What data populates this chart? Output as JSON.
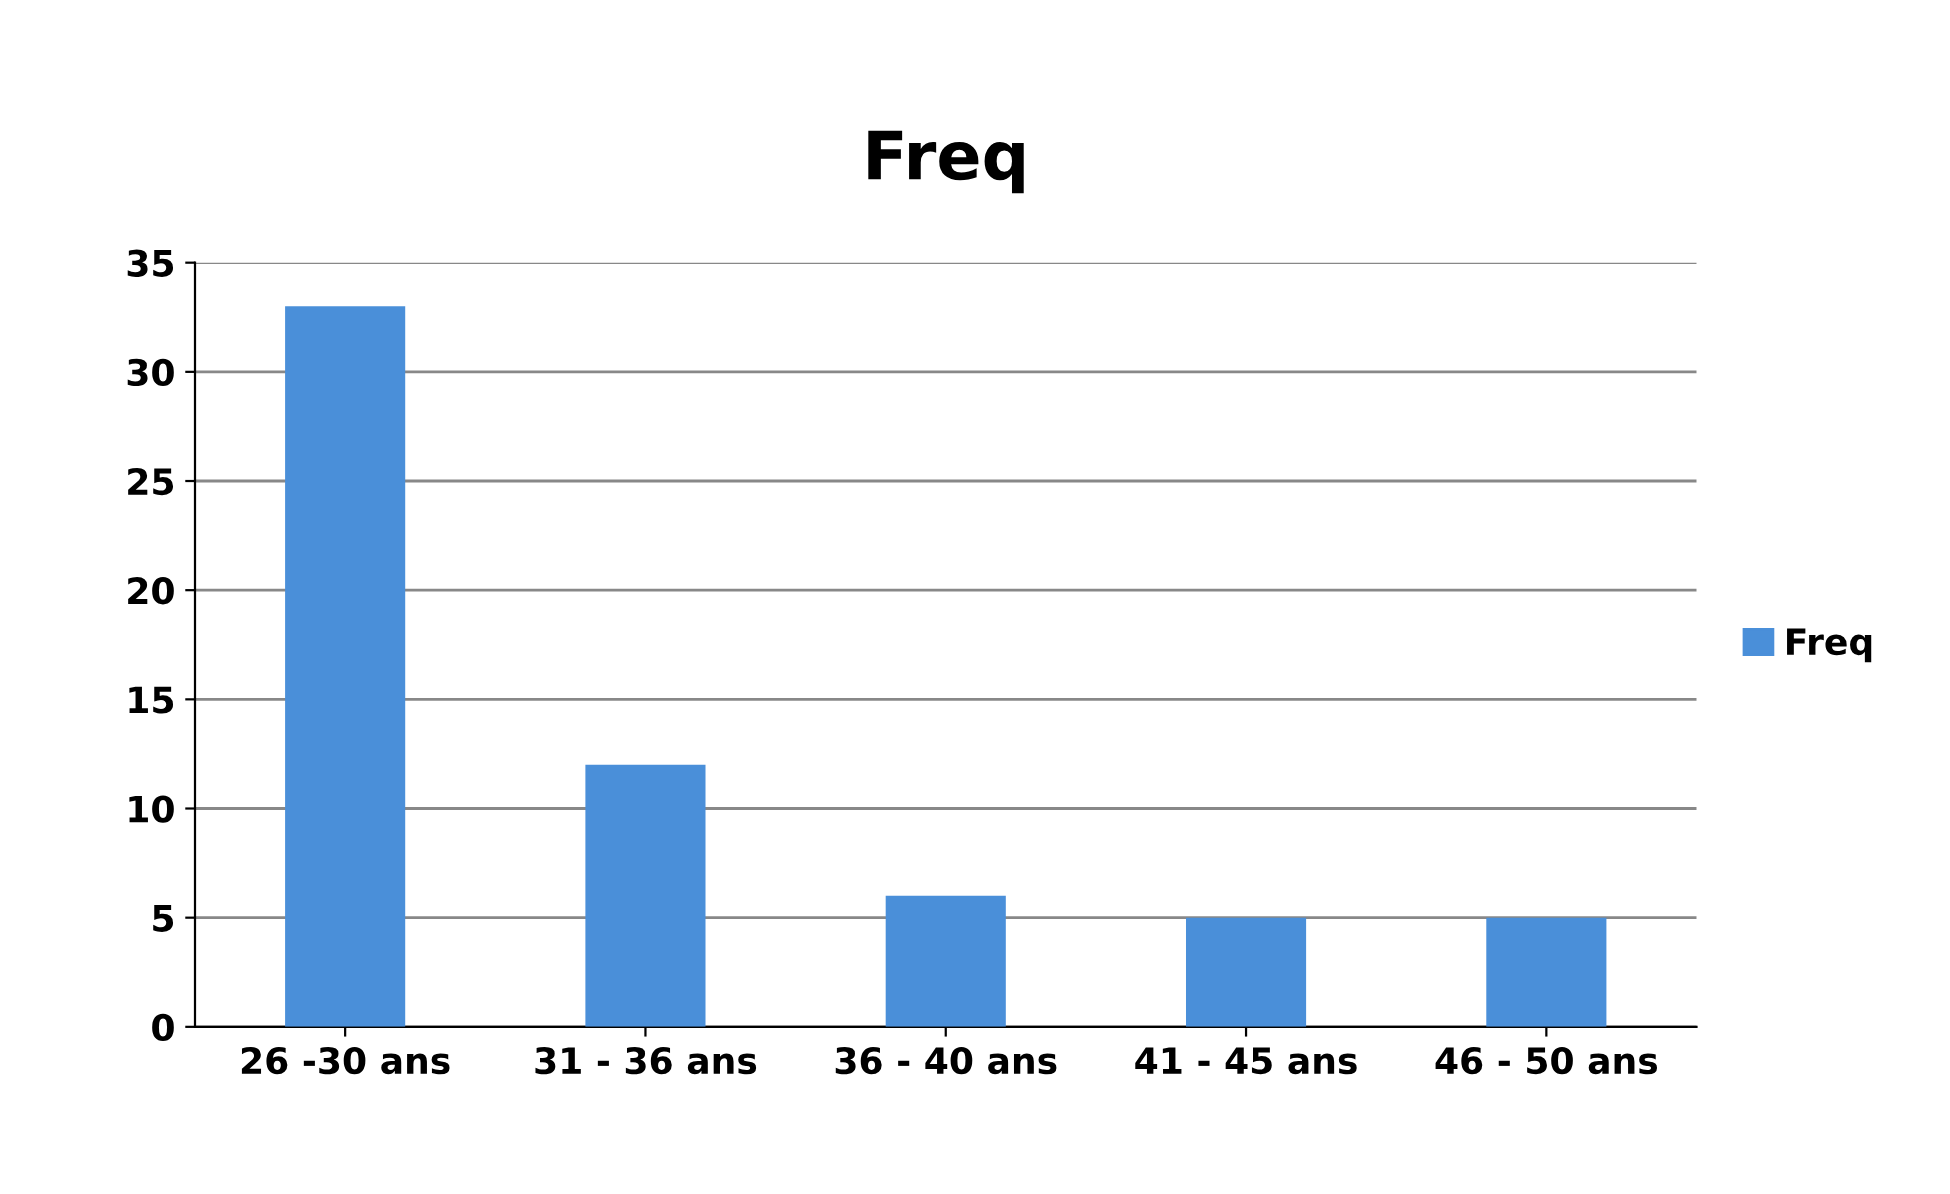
{
  "chart_data": {
    "type": "bar",
    "title": "Freq",
    "categories": [
      "26 -30 ans",
      "31 - 36 ans",
      "36 - 40 ans",
      "41 - 45 ans",
      "46 - 50 ans"
    ],
    "series": [
      {
        "name": "Freq",
        "color": "#4a8fd9",
        "values": [
          33,
          12,
          6,
          5,
          5
        ]
      }
    ],
    "ylim": [
      0,
      35
    ],
    "yticks": [
      0,
      5,
      10,
      15,
      20,
      25,
      30,
      35
    ],
    "grid": "y",
    "legend": "right"
  }
}
